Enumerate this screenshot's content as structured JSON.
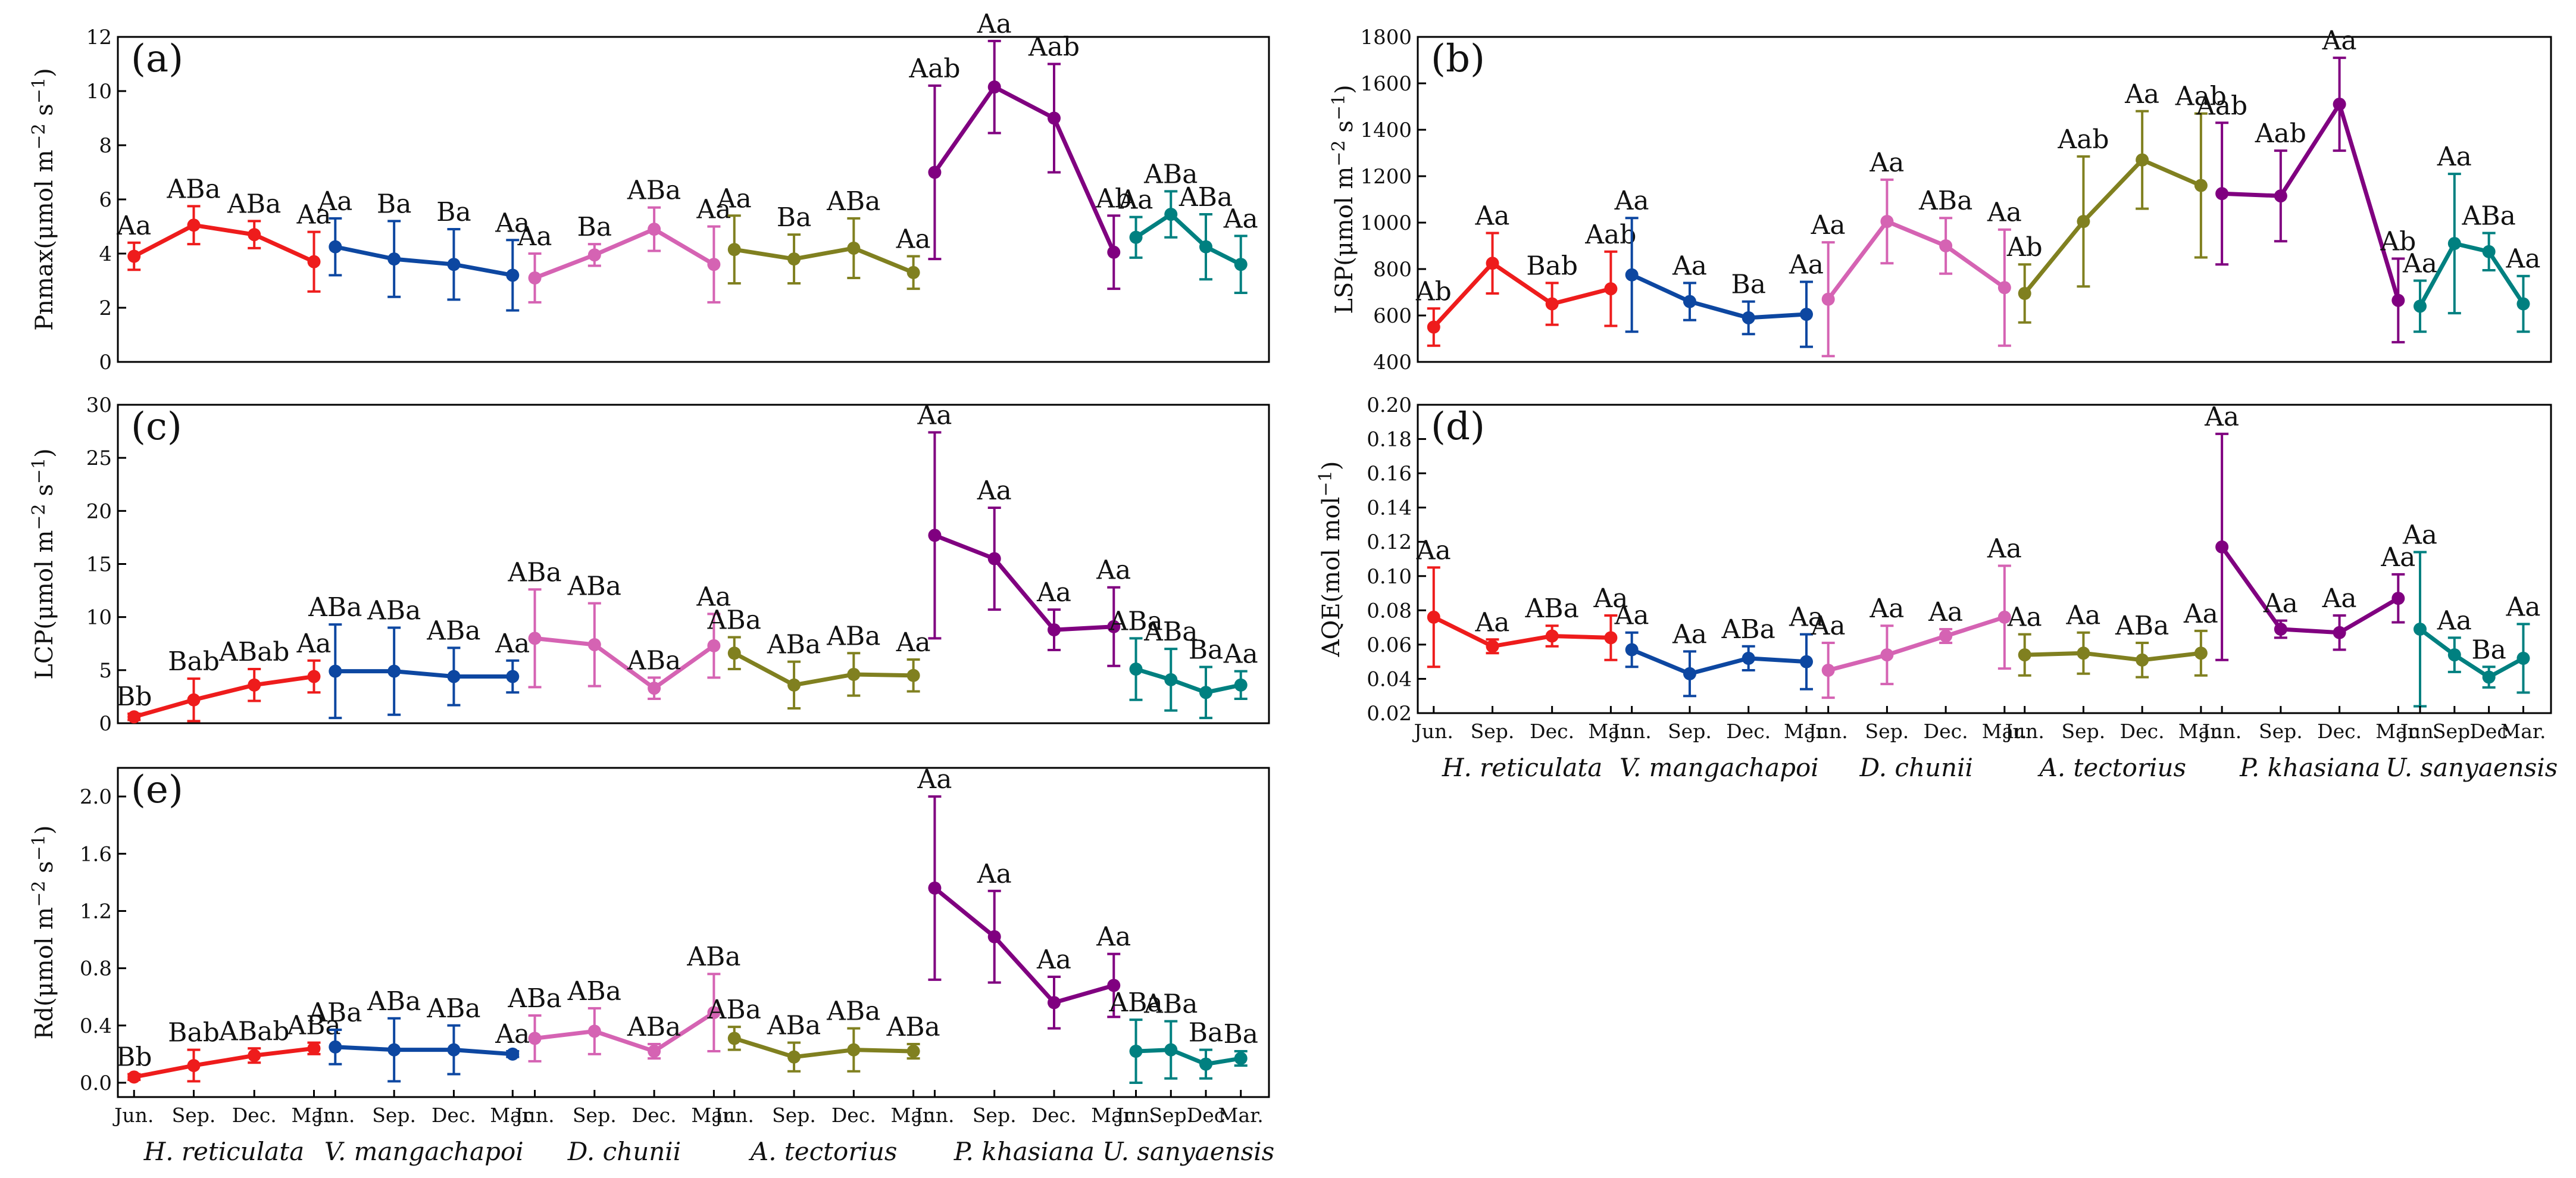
{
  "chart_data": [
    {
      "type": "line",
      "panel": "(a)",
      "ylabel": "Pnmax(μmol m−2 s−1)",
      "ylabel_parts": [
        "Pnmax(μmol m",
        "−2",
        " s",
        "−1",
        ")"
      ],
      "ylim": [
        0,
        12
      ],
      "yticks": [
        0,
        2,
        4,
        6,
        8,
        10,
        12
      ],
      "ytick_labels": [
        "0",
        "2",
        "4",
        "6",
        "8",
        "10",
        "12"
      ],
      "show_xlabels": false,
      "series": [
        {
          "name": "H. reticulata",
          "color": "#ee1c1c",
          "values": [
            3.9,
            5.05,
            4.7,
            3.7
          ],
          "errors": [
            0.5,
            0.7,
            0.5,
            1.1
          ],
          "letters": [
            "Aa",
            "ABa",
            "ABa",
            "Aa"
          ]
        },
        {
          "name": "V. mangachapoi",
          "color": "#0d47a1",
          "values": [
            4.25,
            3.8,
            3.6,
            3.2
          ],
          "errors": [
            1.05,
            1.4,
            1.3,
            1.3
          ],
          "letters": [
            "Aa",
            "Ba",
            "Ba",
            "Aa"
          ]
        },
        {
          "name": "D. chunii",
          "color": "#d563b3",
          "values": [
            3.1,
            3.95,
            4.9,
            3.6
          ],
          "errors": [
            0.9,
            0.4,
            0.8,
            1.4
          ],
          "letters": [
            "Aa",
            "Ba",
            "ABa",
            "Aa"
          ]
        },
        {
          "name": "A. tectorius",
          "color": "#808020",
          "values": [
            4.15,
            3.8,
            4.2,
            3.3
          ],
          "errors": [
            1.25,
            0.9,
            1.1,
            0.6
          ],
          "letters": [
            "Aa",
            "Ba",
            "ABa",
            "Aa"
          ]
        },
        {
          "name": "P. khasiana",
          "color": "#800080",
          "values": [
            7.0,
            10.15,
            9.0,
            4.05
          ],
          "errors": [
            3.2,
            1.7,
            2.0,
            1.35
          ],
          "letters": [
            "Aab",
            "Aa",
            "Aab",
            "Ab"
          ]
        },
        {
          "name": "U. sanyaensis",
          "color": "#008080",
          "values": [
            4.6,
            5.45,
            4.25,
            3.6
          ],
          "errors": [
            0.75,
            0.85,
            1.2,
            1.05
          ],
          "letters": [
            "Aa",
            "ABa",
            "ABa",
            "Aa"
          ]
        }
      ]
    },
    {
      "type": "line",
      "panel": "(b)",
      "ylabel": "LSP(μmol m−2 s−1)",
      "ylabel_parts": [
        "LSP(μmol m",
        "−2",
        " s",
        "−1",
        ")"
      ],
      "ylim": [
        400,
        1800
      ],
      "yticks": [
        400,
        600,
        800,
        1000,
        1200,
        1400,
        1600,
        1800
      ],
      "ytick_labels": [
        "400",
        "600",
        "800",
        "1000",
        "1200",
        "1400",
        "1600",
        "1800"
      ],
      "show_xlabels": false,
      "series": [
        {
          "name": "H. reticulata",
          "color": "#ee1c1c",
          "values": [
            550,
            825,
            650,
            715
          ],
          "errors": [
            80,
            130,
            90,
            160
          ],
          "letters": [
            "Ab",
            "Aa",
            "Bab",
            "Aab"
          ]
        },
        {
          "name": "V. mangachapoi",
          "color": "#0d47a1",
          "values": [
            775,
            660,
            590,
            605
          ],
          "errors": [
            245,
            80,
            70,
            140
          ],
          "letters": [
            "Aa",
            "Aa",
            "Ba",
            "Aa"
          ]
        },
        {
          "name": "D. chunii",
          "color": "#d563b3",
          "values": [
            670,
            1005,
            900,
            720
          ],
          "errors": [
            245,
            180,
            120,
            250
          ],
          "letters": [
            "Aa",
            "Aa",
            "ABa",
            "Aa"
          ]
        },
        {
          "name": "A. tectorius",
          "color": "#808020",
          "values": [
            695,
            1005,
            1270,
            1160
          ],
          "errors": [
            125,
            280,
            210,
            310
          ],
          "letters": [
            "Ab",
            "Aab",
            "Aa",
            "Aab"
          ]
        },
        {
          "name": "P. khasiana",
          "color": "#800080",
          "values": [
            1125,
            1115,
            1510,
            665
          ],
          "errors": [
            305,
            195,
            200,
            180
          ],
          "letters": [
            "Aab",
            "Aab",
            "Aa",
            "Ab"
          ]
        },
        {
          "name": "U. sanyaensis",
          "color": "#008080",
          "values": [
            640,
            910,
            875,
            650
          ],
          "errors": [
            110,
            300,
            80,
            120
          ],
          "letters": [
            "Aa",
            "Aa",
            "ABa",
            "Aa"
          ]
        }
      ]
    },
    {
      "type": "line",
      "panel": "(c)",
      "ylabel": "LCP(μmol m−2 s−1)",
      "ylabel_parts": [
        "LCP(μmol m",
        "−2",
        " s",
        "−1",
        ")"
      ],
      "ylim": [
        0,
        30
      ],
      "yticks": [
        0,
        5,
        10,
        15,
        20,
        25,
        30
      ],
      "ytick_labels": [
        "0",
        "5",
        "10",
        "15",
        "20",
        "25",
        "30"
      ],
      "show_xlabels": false,
      "series": [
        {
          "name": "H. reticulata",
          "color": "#ee1c1c",
          "values": [
            0.6,
            2.2,
            3.6,
            4.4
          ],
          "errors": [
            0.3,
            2.0,
            1.5,
            1.5
          ],
          "letters": [
            "Bb",
            "Bab",
            "ABab",
            "Aa"
          ]
        },
        {
          "name": "V. mangachapoi",
          "color": "#0d47a1",
          "values": [
            4.9,
            4.9,
            4.4,
            4.4
          ],
          "errors": [
            4.4,
            4.1,
            2.7,
            1.5
          ],
          "letters": [
            "ABa",
            "ABa",
            "ABa",
            "Aa"
          ]
        },
        {
          "name": "D. chunii",
          "color": "#d563b3",
          "values": [
            8.0,
            7.4,
            3.3,
            7.3
          ],
          "errors": [
            4.6,
            3.9,
            1.0,
            3.0
          ],
          "letters": [
            "ABa",
            "ABa",
            "ABa",
            "Aa"
          ]
        },
        {
          "name": "A. tectorius",
          "color": "#808020",
          "values": [
            6.6,
            3.6,
            4.6,
            4.5
          ],
          "errors": [
            1.5,
            2.2,
            2.0,
            1.5
          ],
          "letters": [
            "ABa",
            "ABa",
            "ABa",
            "Aa"
          ]
        },
        {
          "name": "P. khasiana",
          "color": "#800080",
          "values": [
            17.7,
            15.5,
            8.8,
            9.1
          ],
          "errors": [
            9.7,
            4.8,
            1.9,
            3.7
          ],
          "letters": [
            "Aa",
            "Aa",
            "Aa",
            "Aa"
          ]
        },
        {
          "name": "U. sanyaensis",
          "color": "#008080",
          "values": [
            5.1,
            4.1,
            2.9,
            3.6
          ],
          "errors": [
            2.9,
            2.9,
            2.4,
            1.3
          ],
          "letters": [
            "ABa",
            "ABa",
            "Ba",
            "Aa"
          ]
        }
      ]
    },
    {
      "type": "line",
      "panel": "(d)",
      "ylabel": "AQE(mol mol−1)",
      "ylabel_parts": [
        "AQE(mol mol",
        "−1",
        ")"
      ],
      "ylim": [
        0.02,
        0.2
      ],
      "yticks": [
        0.02,
        0.04,
        0.06,
        0.08,
        0.1,
        0.12,
        0.14,
        0.16,
        0.18,
        0.2
      ],
      "ytick_labels": [
        "0.02",
        "0.04",
        "0.06",
        "0.08",
        "0.10",
        "0.12",
        "0.14",
        "0.16",
        "0.18",
        "0.20"
      ],
      "show_xlabels": true,
      "month_labels": [
        "Jun.",
        "Sep.",
        "Dec.",
        "Mar."
      ],
      "last_group_month_labels": [
        "Jun.",
        "Sep.",
        "Dec",
        "Mar."
      ],
      "series": [
        {
          "name": "H. reticulata",
          "color": "#ee1c1c",
          "values": [
            0.076,
            0.059,
            0.065,
            0.064
          ],
          "errors": [
            0.029,
            0.004,
            0.006,
            0.013
          ],
          "letters": [
            "Aa",
            "Aa",
            "ABa",
            "Aa"
          ]
        },
        {
          "name": "V. mangachapoi",
          "color": "#0d47a1",
          "values": [
            0.057,
            0.043,
            0.052,
            0.05
          ],
          "errors": [
            0.01,
            0.013,
            0.007,
            0.016
          ],
          "letters": [
            "Aa",
            "Aa",
            "ABa",
            "Aa"
          ]
        },
        {
          "name": "D. chunii",
          "color": "#d563b3",
          "values": [
            0.045,
            0.054,
            0.065,
            0.076
          ],
          "errors": [
            0.016,
            0.017,
            0.004,
            0.03
          ],
          "letters": [
            "Aa",
            "Aa",
            "Aa",
            "Aa"
          ]
        },
        {
          "name": "A. tectorius",
          "color": "#808020",
          "values": [
            0.054,
            0.055,
            0.051,
            0.055
          ],
          "errors": [
            0.012,
            0.012,
            0.01,
            0.013
          ],
          "letters": [
            "Aa",
            "Aa",
            "ABa",
            "Aa"
          ]
        },
        {
          "name": "P. khasiana",
          "color": "#800080",
          "values": [
            0.117,
            0.069,
            0.067,
            0.087
          ],
          "errors": [
            0.066,
            0.005,
            0.01,
            0.014
          ],
          "letters": [
            "Aa",
            "Aa",
            "Aa",
            "Aa"
          ]
        },
        {
          "name": "U. sanyaensis",
          "color": "#008080",
          "values": [
            0.069,
            0.054,
            0.041,
            0.052
          ],
          "errors": [
            0.045,
            0.01,
            0.006,
            0.02
          ],
          "letters": [
            "Aa",
            "Aa",
            "Ba",
            "Aa"
          ]
        }
      ]
    },
    {
      "type": "line",
      "panel": "(e)",
      "ylabel": "Rd(μmol m−2 s−1)",
      "ylabel_parts": [
        "Rd(μmol m",
        "−2",
        " s",
        "−1",
        ")"
      ],
      "ylim": [
        -0.1,
        2.2
      ],
      "yticks": [
        0,
        0.4,
        0.8,
        1.2,
        1.6,
        2.0
      ],
      "ytick_labels": [
        "0.0",
        "0.4",
        "0.8",
        "1.2",
        "1.6",
        "2.0"
      ],
      "show_xlabels": true,
      "month_labels": [
        "Jun.",
        "Sep.",
        "Dec.",
        "Mar."
      ],
      "last_group_month_labels": [
        "Jun.",
        "Sep.",
        "Dec",
        "Mar."
      ],
      "series": [
        {
          "name": "H. reticulata",
          "color": "#ee1c1c",
          "values": [
            0.04,
            0.12,
            0.19,
            0.24
          ],
          "errors": [
            0.02,
            0.11,
            0.05,
            0.04
          ],
          "letters": [
            "Bb",
            "Bab",
            "ABab",
            "ABa"
          ]
        },
        {
          "name": "V. mangachapoi",
          "color": "#0d47a1",
          "values": [
            0.25,
            0.23,
            0.23,
            0.2
          ],
          "errors": [
            0.12,
            0.22,
            0.17,
            0.02
          ],
          "letters": [
            "ABa",
            "ABa",
            "ABa",
            "Aa"
          ]
        },
        {
          "name": "D. chunii",
          "color": "#d563b3",
          "values": [
            0.31,
            0.36,
            0.22,
            0.49
          ],
          "errors": [
            0.16,
            0.16,
            0.05,
            0.27
          ],
          "letters": [
            "ABa",
            "ABa",
            "ABa",
            "ABa"
          ]
        },
        {
          "name": "A. tectorius",
          "color": "#808020",
          "values": [
            0.31,
            0.18,
            0.23,
            0.22
          ],
          "errors": [
            0.08,
            0.1,
            0.15,
            0.05
          ],
          "letters": [
            "ABa",
            "ABa",
            "ABa",
            "ABa"
          ]
        },
        {
          "name": "P. khasiana",
          "color": "#800080",
          "values": [
            1.36,
            1.02,
            0.56,
            0.68
          ],
          "errors": [
            0.64,
            0.32,
            0.18,
            0.22
          ],
          "letters": [
            "Aa",
            "Aa",
            "Aa",
            "Aa"
          ]
        },
        {
          "name": "U. sanyaensis",
          "color": "#008080",
          "values": [
            0.22,
            0.23,
            0.13,
            0.17
          ],
          "errors": [
            0.22,
            0.2,
            0.1,
            0.05
          ],
          "letters": [
            "ABa",
            "ABa",
            "Ba",
            "Ba"
          ]
        }
      ]
    }
  ]
}
